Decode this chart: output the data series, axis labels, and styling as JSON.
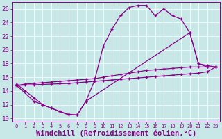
{
  "xlabel": "Windchill (Refroidissement éolien,°C)",
  "background_color": "#c8e8e8",
  "line_color": "#880088",
  "grid_color": "#b0d8d8",
  "xlim": [
    -0.5,
    23.5
  ],
  "ylim": [
    9.5,
    27.0
  ],
  "xticks": [
    0,
    1,
    2,
    3,
    4,
    5,
    6,
    7,
    8,
    9,
    10,
    11,
    12,
    13,
    14,
    15,
    16,
    17,
    18,
    19,
    20,
    21,
    22,
    23
  ],
  "yticks": [
    10,
    12,
    14,
    16,
    18,
    20,
    22,
    24,
    26
  ],
  "curve1_x": [
    0,
    1,
    2,
    3,
    4,
    5,
    6,
    7,
    8,
    9,
    10,
    11,
    12,
    13,
    14,
    15,
    16,
    17,
    18,
    19,
    20,
    21,
    22
  ],
  "curve1_y": [
    15.0,
    14.0,
    13.0,
    12.0,
    11.5,
    11.0,
    10.5,
    10.5,
    12.5,
    15.5,
    20.5,
    23.0,
    25.0,
    26.2,
    26.5,
    26.5,
    25.0,
    26.0,
    25.0,
    24.5,
    22.5,
    18.0,
    17.5
  ],
  "curve2_x": [
    0,
    1,
    2,
    3,
    4,
    5,
    6,
    7,
    8,
    9,
    10,
    11,
    12,
    13,
    14,
    15,
    16,
    17,
    18,
    19,
    20,
    21,
    22,
    23
  ],
  "curve2_y": [
    14.8,
    15.0,
    15.1,
    15.2,
    15.3,
    15.4,
    15.5,
    15.6,
    15.7,
    15.8,
    16.0,
    16.2,
    16.4,
    16.6,
    16.8,
    17.0,
    17.1,
    17.2,
    17.3,
    17.4,
    17.5,
    17.5,
    17.5,
    17.5
  ],
  "curve3_x": [
    0,
    1,
    2,
    3,
    4,
    5,
    6,
    7,
    8,
    9,
    10,
    11,
    12,
    13,
    14,
    15,
    16,
    17,
    18,
    19,
    20,
    21,
    22,
    23
  ],
  "curve3_y": [
    14.8,
    14.85,
    14.9,
    14.95,
    15.0,
    15.05,
    15.1,
    15.2,
    15.3,
    15.4,
    15.5,
    15.6,
    15.7,
    15.8,
    15.9,
    16.0,
    16.1,
    16.2,
    16.3,
    16.4,
    16.5,
    16.6,
    16.8,
    17.5
  ],
  "curve4_x": [
    0,
    2,
    3,
    4,
    5,
    6,
    7,
    8,
    20,
    21,
    22,
    23
  ],
  "curve4_y": [
    14.8,
    12.5,
    12.0,
    11.5,
    11.0,
    10.6,
    10.5,
    12.5,
    22.5,
    18.0,
    17.7,
    17.5
  ],
  "tick_fontsize": 6.5,
  "label_fontsize": 7.5
}
